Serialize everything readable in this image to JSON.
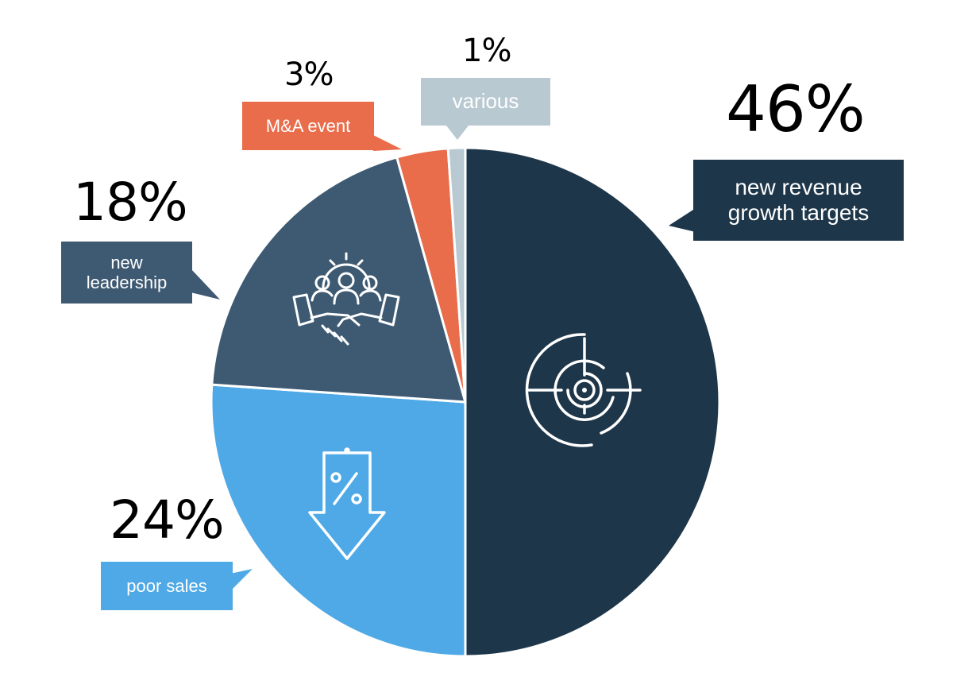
{
  "chart_data": {
    "type": "pie",
    "slices": [
      {
        "label": "new revenue growth targets",
        "value": 46,
        "value_label": "46%",
        "color": "#1e3649",
        "icon": "target-icon"
      },
      {
        "label": "poor sales",
        "value": 24,
        "value_label": "24%",
        "color": "#4ea9e6",
        "icon": "percent-down-arrow-icon"
      },
      {
        "label": "new leadership",
        "value": 18,
        "value_label": "18%",
        "color": "#3e5a73",
        "icon": "team-handshake-icon"
      },
      {
        "label": "M&A event",
        "value": 3,
        "value_label": "3%",
        "color": "#e96c4b"
      },
      {
        "label": "various",
        "value": 1,
        "value_label": "1%",
        "color": "#b8c9d1"
      }
    ],
    "start": "12 o'clock",
    "direction": "clockwise"
  },
  "labels": {
    "revenue_pct": "46%",
    "revenue_line1": "new revenue",
    "revenue_line2": "growth targets",
    "sales_pct": "24%",
    "sales_text": "poor sales",
    "leadership_pct": "18%",
    "leadership_line1": "new",
    "leadership_line2": "leadership",
    "ma_pct": "3%",
    "ma_text": "M&A event",
    "various_pct": "1%",
    "various_text": "various"
  }
}
